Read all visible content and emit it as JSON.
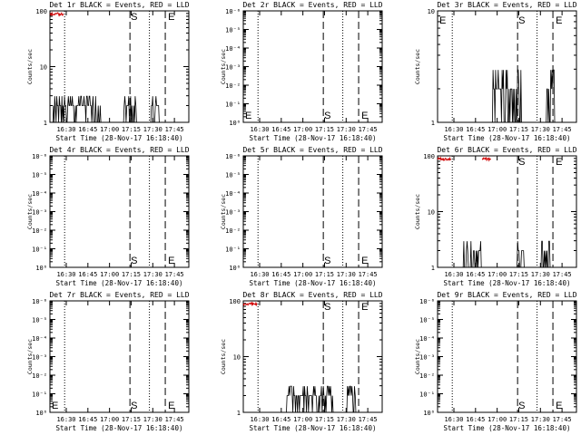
{
  "chart_data": [
    {
      "type": "line",
      "title": "Det 1r BLACK = Events, RED = LLD",
      "ylabel": "Counts/sec",
      "xlabel": "Start Time (28-Nov-17 16:18:40)",
      "x_tick_labels": [
        "16:30",
        "16:45",
        "17:00",
        "17:15",
        "17:30",
        "17:45"
      ],
      "y_scale": "log",
      "y_tick_labels": [
        "1",
        "10",
        "100"
      ],
      "markers": [
        "S",
        "E"
      ],
      "events_level": "low-spikes",
      "lld_level": "near-100"
    },
    {
      "type": "line",
      "title": "Det 2r BLACK = Events, RED = LLD",
      "ylabel": "Counts/sec",
      "xlabel": "Start Time (28-Nov-17 16:18:40)",
      "x_tick_labels": [
        "16:30",
        "16:45",
        "17:00",
        "17:15",
        "17:30",
        "17:45"
      ],
      "y_scale": "log",
      "y_tick_labels": [
        "10⁰",
        "10⁻¹",
        "10⁻²",
        "10⁻³",
        "10⁻⁴",
        "10⁻⁵",
        "10⁻⁶"
      ],
      "markers": [
        "S",
        "E"
      ],
      "events_level": "none",
      "lld_level": "none"
    },
    {
      "type": "line",
      "title": "Det 3r BLACK = Events, RED = LLD",
      "ylabel": "Counts/sec",
      "xlabel": "Start Time (28-Nov-17 16:18:40)",
      "x_tick_labels": [
        "16:30",
        "16:45",
        "17:00",
        "17:15",
        "17:30",
        "17:45"
      ],
      "y_scale": "log",
      "y_tick_labels": [
        "1",
        "10"
      ],
      "markers": [
        "S",
        "E"
      ],
      "events_level": "low-spikes",
      "lld_level": "none"
    },
    {
      "type": "line",
      "title": "Det 4r BLACK = Events, RED = LLD",
      "ylabel": "Counts/sec",
      "xlabel": "Start Time (28-Nov-17 16:18:40)",
      "x_tick_labels": [
        "16:30",
        "16:45",
        "17:00",
        "17:15",
        "17:30",
        "17:45"
      ],
      "y_scale": "log",
      "y_tick_labels": [
        "10⁰",
        "10⁻¹",
        "10⁻²",
        "10⁻³",
        "10⁻⁴",
        "10⁻⁵",
        "10⁻⁶"
      ],
      "markers": [
        "S",
        "E"
      ],
      "events_level": "none",
      "lld_level": "none"
    },
    {
      "type": "line",
      "title": "Det 5r BLACK = Events, RED = LLD",
      "ylabel": "Counts/sec",
      "xlabel": "Start Time (28-Nov-17 16:18:40)",
      "x_tick_labels": [
        "16:30",
        "16:45",
        "17:00",
        "17:15",
        "17:30",
        "17:45"
      ],
      "y_scale": "log",
      "y_tick_labels": [
        "10⁰",
        "10⁻¹",
        "10⁻²",
        "10⁻³",
        "10⁻⁴",
        "10⁻⁵",
        "10⁻⁶"
      ],
      "markers": [
        "S",
        "E"
      ],
      "events_level": "none",
      "lld_level": "none"
    },
    {
      "type": "line",
      "title": "Det 6r BLACK = Events, RED = LLD",
      "ylabel": "Counts/sec",
      "xlabel": "Start Time (28-Nov-17 16:18:40)",
      "x_tick_labels": [
        "16:30",
        "16:45",
        "17:00",
        "17:15",
        "17:30",
        "17:45"
      ],
      "y_scale": "log",
      "y_tick_labels": [
        "1",
        "10",
        "100"
      ],
      "markers": [
        "S",
        "E"
      ],
      "events_level": "low-spikes",
      "lld_level": "near-100"
    },
    {
      "type": "line",
      "title": "Det 7r BLACK = Events, RED = LLD",
      "ylabel": "Counts/sec",
      "xlabel": "Start Time (28-Nov-17 16:18:40)",
      "x_tick_labels": [
        "16:30",
        "16:45",
        "17:00",
        "17:15",
        "17:30",
        "17:45"
      ],
      "y_scale": "log",
      "y_tick_labels": [
        "10⁰",
        "10⁻¹",
        "10⁻²",
        "10⁻³",
        "10⁻⁴",
        "10⁻⁵",
        "10⁻⁶"
      ],
      "markers": [
        "S",
        "E"
      ],
      "events_level": "none",
      "lld_level": "none"
    },
    {
      "type": "line",
      "title": "Det 8r BLACK = Events, RED = LLD",
      "ylabel": "Counts/sec",
      "xlabel": "Start Time (28-Nov-17 16:18:40)",
      "x_tick_labels": [
        "16:30",
        "16:45",
        "17:00",
        "17:15",
        "17:30",
        "17:45"
      ],
      "y_scale": "log",
      "y_tick_labels": [
        "1",
        "10",
        "100"
      ],
      "markers": [
        "S",
        "E"
      ],
      "events_level": "low-spikes",
      "lld_level": "near-100"
    },
    {
      "type": "line",
      "title": "Det 9r BLACK = Events, RED = LLD",
      "ylabel": "Counts/sec",
      "xlabel": "Start Time (28-Nov-17 16:18:40)",
      "x_tick_labels": [
        "16:30",
        "16:45",
        "17:00",
        "17:15",
        "17:30",
        "17:45"
      ],
      "y_scale": "log",
      "y_tick_labels": [
        "10⁰",
        "10⁻¹",
        "10⁻²",
        "10⁻³",
        "10⁻⁴",
        "10⁻⁵",
        "10⁻⁶"
      ],
      "markers": [
        "S",
        "E"
      ],
      "events_level": "none",
      "lld_level": "none"
    }
  ]
}
